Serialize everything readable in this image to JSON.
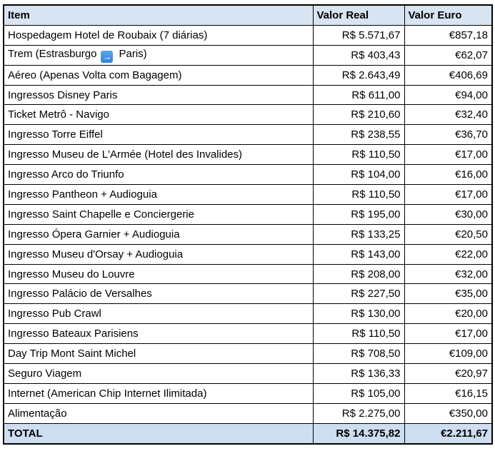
{
  "page": {
    "background": "#FFFFFF"
  },
  "table": {
    "columns": [
      {
        "label": "Item"
      },
      {
        "label": "Valor Real"
      },
      {
        "label": "Valor Euro"
      }
    ],
    "icons": {
      "right_arrow": "→"
    },
    "colors": {
      "header_bg": "#D8E4F1",
      "total_bg": "#CDDEF0",
      "border": "#000000",
      "text": "#000000",
      "arrow_badge_bg": "#3E8CDC",
      "arrow_badge_glyph": "#FFFFFF"
    },
    "rows": [
      {
        "item": "Hospedagem Hotel de Roubaix (7 diárias)",
        "real": "R$ 5.571,67",
        "euro": "€857,18"
      },
      {
        "item_before": "Trem (Estrasburgo",
        "icon": "right-arrow-icon",
        "item_after": "Paris)",
        "real": "R$ 403,43",
        "euro": "€62,07"
      },
      {
        "item": "Aéreo (Apenas Volta com Bagagem)",
        "real": "R$ 2.643,49",
        "euro": "€406,69"
      },
      {
        "item": "Ingressos Disney Paris",
        "real": "R$ 611,00",
        "euro": "€94,00"
      },
      {
        "item": "Ticket Metrô - Navigo",
        "real": "R$ 210,60",
        "euro": "€32,40"
      },
      {
        "item": "Ingresso Torre Eiffel",
        "real": "R$ 238,55",
        "euro": "€36,70"
      },
      {
        "item": "Ingresso Museu de L'Armée (Hotel des Invalides)",
        "real": "R$ 110,50",
        "euro": "€17,00"
      },
      {
        "item": "Ingresso Arco do Triunfo",
        "real": "R$ 104,00",
        "euro": "€16,00"
      },
      {
        "item": "Ingresso Pantheon + Audioguia",
        "real": "R$ 110,50",
        "euro": "€17,00"
      },
      {
        "item": "Ingresso Saint Chapelle e Conciergerie",
        "real": "R$ 195,00",
        "euro": "€30,00"
      },
      {
        "item": "Ingresso Ópera Garnier + Audioguia",
        "real": "R$ 133,25",
        "euro": "€20,50"
      },
      {
        "item": "Ingresso Museu d'Orsay + Audioguia",
        "real": "R$ 143,00",
        "euro": "€22,00"
      },
      {
        "item": "Ingresso Museu do Louvre",
        "real": "R$ 208,00",
        "euro": "€32,00"
      },
      {
        "item": "Ingresso Palácio de Versalhes",
        "real": "R$ 227,50",
        "euro": "€35,00"
      },
      {
        "item": "Ingresso Pub Crawl",
        "real": "R$ 130,00",
        "euro": "€20,00"
      },
      {
        "item": "Ingresso Bateaux Parisiens",
        "real": "R$ 110,50",
        "euro": "€17,00"
      },
      {
        "item": "Day Trip Mont Saint Michel",
        "real": "R$ 708,50",
        "euro": "€109,00"
      },
      {
        "item": "Seguro Viagem",
        "real": "R$ 136,33",
        "euro": "€20,97"
      },
      {
        "item": "Internet (American Chip Internet Ilimitada)",
        "real": "R$ 105,00",
        "euro": "€16,15"
      },
      {
        "item": "Alimentação",
        "real": "R$ 2.275,00",
        "euro": "€350,00"
      }
    ],
    "total": {
      "label": "TOTAL",
      "real": "R$ 14.375,82",
      "euro": "€2.211,67"
    }
  }
}
